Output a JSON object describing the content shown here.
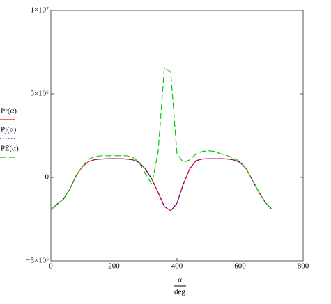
{
  "chart_data": {
    "type": "line",
    "x": [
      0,
      20,
      40,
      60,
      80,
      100,
      120,
      140,
      160,
      180,
      200,
      220,
      240,
      260,
      280,
      300,
      320,
      340,
      360,
      380,
      400,
      420,
      440,
      460,
      480,
      500,
      520,
      540,
      560,
      580,
      600,
      620,
      640,
      660,
      680,
      700
    ],
    "series": [
      {
        "name": "Pr(α)",
        "color": "#ff0000",
        "dash": "solid",
        "values": [
          -1940000,
          -1600000,
          -1300000,
          -700000,
          100000,
          650000,
          950000,
          1070000,
          1100000,
          1120000,
          1120000,
          1120000,
          1100000,
          1050000,
          900000,
          500000,
          -100000,
          -900000,
          -1750000,
          -2000000,
          -1550000,
          -400000,
          500000,
          1000000,
          1100000,
          1120000,
          1120000,
          1120000,
          1100000,
          1050000,
          900000,
          500000,
          -200000,
          -900000,
          -1500000,
          -1900000
        ]
      },
      {
        "name": "Pj(α)",
        "color": "#0000cc",
        "dash": "dotted",
        "values": [
          -1940000,
          -1600000,
          -1300000,
          -700000,
          100000,
          650000,
          950000,
          1070000,
          1100000,
          1120000,
          1120000,
          1120000,
          1100000,
          1050000,
          900000,
          500000,
          -100000,
          -900000,
          -1750000,
          -2000000,
          -1550000,
          -400000,
          500000,
          1000000,
          1100000,
          1120000,
          1120000,
          1120000,
          1100000,
          1050000,
          900000,
          500000,
          -200000,
          -900000,
          -1500000,
          -1900000
        ]
      },
      {
        "name": "PΣ(α)",
        "color": "#00cc00",
        "dash": "dashed",
        "values": [
          -1940000,
          -1600000,
          -1300000,
          -700000,
          100000,
          650000,
          1100000,
          1250000,
          1300000,
          1300000,
          1300000,
          1300000,
          1300000,
          1200000,
          900000,
          200000,
          -400000,
          1500000,
          6600000,
          6300000,
          1400000,
          900000,
          1050000,
          1400000,
          1550000,
          1600000,
          1550000,
          1400000,
          1300000,
          1150000,
          950000,
          500000,
          -200000,
          -900000,
          -1500000,
          -1900000
        ]
      }
    ],
    "xlim": [
      0,
      800
    ],
    "xticks": [
      0,
      200,
      400,
      600,
      800
    ],
    "ylim": [
      -5000000,
      10000000
    ],
    "yticks": [
      {
        "value": -5000000,
        "label": "−5×10⁶"
      },
      {
        "value": 0,
        "label": "0"
      },
      {
        "value": 5000000,
        "label": "5×10⁶"
      },
      {
        "value": 10000000,
        "label": "1×10⁷"
      }
    ],
    "xlabel": {
      "numerator": "α",
      "denominator": "deg"
    }
  }
}
